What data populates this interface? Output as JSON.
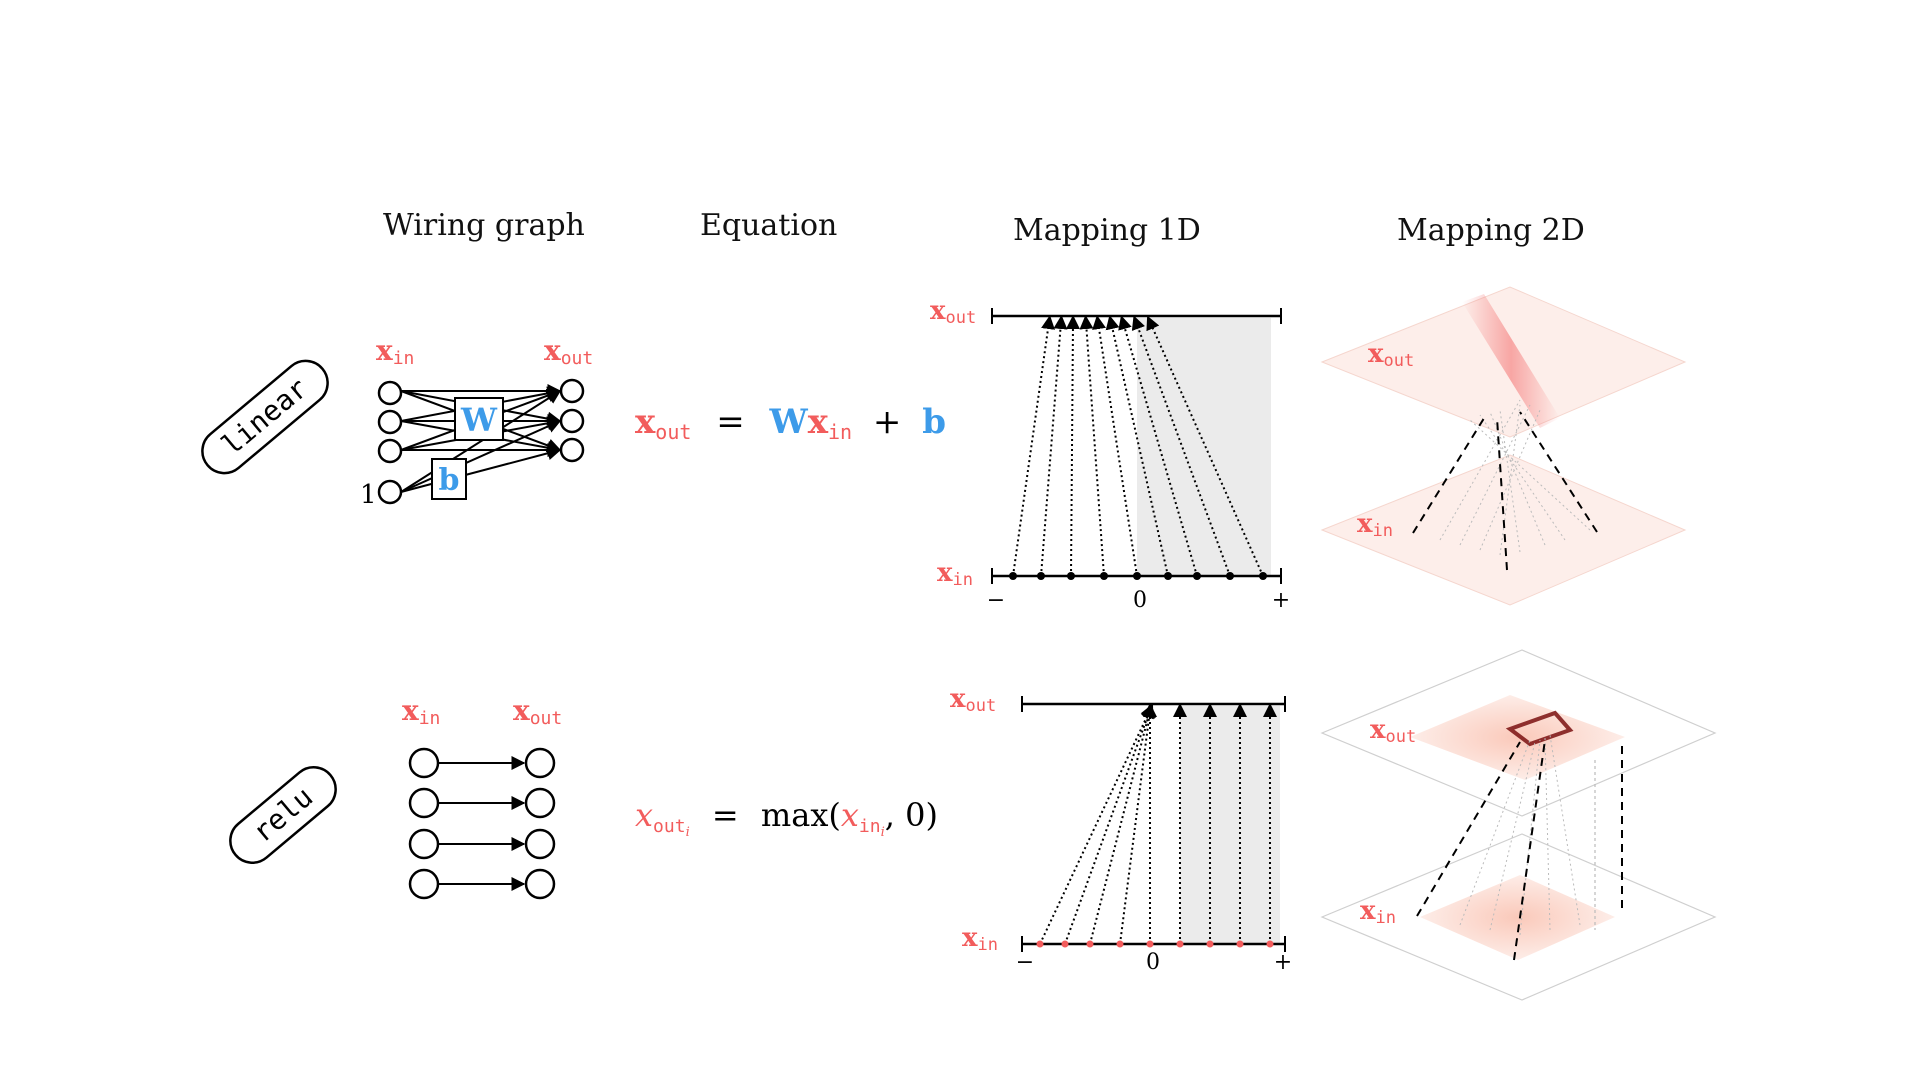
{
  "headers": {
    "wiring": "Wiring graph",
    "equation": "Equation",
    "mapping1d": "Mapping 1D",
    "mapping2d": "Mapping 2D"
  },
  "symbols": {
    "x": "x",
    "in": "in",
    "out": "out",
    "one": "1",
    "W": "W",
    "b": "b",
    "i": "i",
    "minus": "−",
    "plus": "+",
    "zero": "0"
  },
  "rows": [
    {
      "tag": "linear",
      "equation": {
        "eq": "=",
        "plus": "+"
      }
    },
    {
      "tag": "relu",
      "equation": {
        "eq": "=",
        "max_open": "max(",
        "close": ", 0)"
      }
    }
  ],
  "colors": {
    "accent_red": "#f25c5c",
    "accent_blue": "#3d9be9",
    "shade": "#ebebeb"
  }
}
